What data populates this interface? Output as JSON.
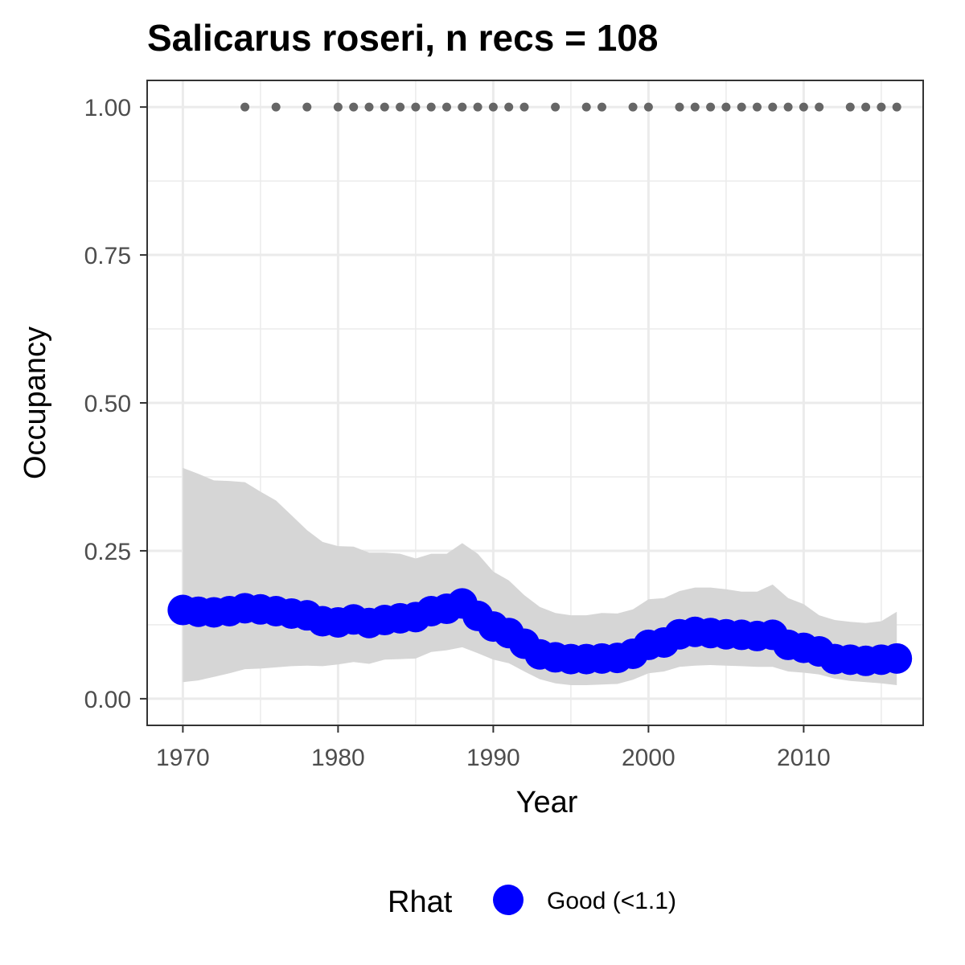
{
  "chart_data": {
    "type": "line",
    "title": "Salicarus roseri, n recs = 108",
    "xlabel": "Year",
    "ylabel": "Occupancy",
    "xlim": [
      1967.7,
      2017.7
    ],
    "ylim": [
      -0.045,
      1.045
    ],
    "x_ticks": [
      1970,
      1980,
      1990,
      2000,
      2010
    ],
    "x_tick_labels": [
      "1970",
      "1980",
      "1990",
      "2000",
      "2010"
    ],
    "y_ticks": [
      0,
      0.25,
      0.5,
      0.75,
      1.0
    ],
    "y_tick_labels": [
      "0.00",
      "0.25",
      "0.50",
      "0.75",
      "1.00"
    ],
    "grid": true,
    "legend": {
      "position": "bottom",
      "title": "Rhat",
      "entries": [
        {
          "label": "Good (<1.1)",
          "color": "#0000ff"
        }
      ]
    },
    "colors": {
      "series": "#0000ff",
      "ribbon": "#d6d6d6",
      "records": "#666666",
      "grid": "#ebebeb",
      "panel_border": "#333333"
    },
    "series": [
      {
        "name": "Good (<1.1)",
        "x": [
          1970,
          1971,
          1972,
          1973,
          1974,
          1975,
          1976,
          1977,
          1978,
          1979,
          1980,
          1981,
          1982,
          1983,
          1984,
          1985,
          1986,
          1987,
          1988,
          1989,
          1990,
          1991,
          1992,
          1993,
          1994,
          1995,
          1996,
          1997,
          1998,
          1999,
          2000,
          2001,
          2002,
          2003,
          2004,
          2005,
          2006,
          2007,
          2008,
          2009,
          2010,
          2011,
          2012,
          2013,
          2014,
          2015,
          2016
        ],
        "y": [
          0.15,
          0.147,
          0.146,
          0.148,
          0.153,
          0.151,
          0.148,
          0.144,
          0.141,
          0.131,
          0.129,
          0.134,
          0.128,
          0.133,
          0.136,
          0.138,
          0.148,
          0.152,
          0.161,
          0.14,
          0.122,
          0.111,
          0.093,
          0.075,
          0.07,
          0.067,
          0.067,
          0.068,
          0.069,
          0.076,
          0.091,
          0.095,
          0.109,
          0.113,
          0.111,
          0.109,
          0.108,
          0.106,
          0.108,
          0.091,
          0.086,
          0.08,
          0.067,
          0.066,
          0.064,
          0.066,
          0.068
        ]
      }
    ],
    "ribbon": {
      "x": [
        1970,
        1971,
        1972,
        1973,
        1974,
        1975,
        1976,
        1977,
        1978,
        1979,
        1980,
        1981,
        1982,
        1983,
        1984,
        1985,
        1986,
        1987,
        1988,
        1989,
        1990,
        1991,
        1992,
        1993,
        1994,
        1995,
        1996,
        1997,
        1998,
        1999,
        2000,
        2001,
        2002,
        2003,
        2004,
        2005,
        2006,
        2007,
        2008,
        2009,
        2010,
        2011,
        2012,
        2013,
        2014,
        2015,
        2016
      ],
      "upper": [
        0.39,
        0.38,
        0.369,
        0.368,
        0.366,
        0.35,
        0.335,
        0.31,
        0.285,
        0.265,
        0.258,
        0.257,
        0.247,
        0.247,
        0.245,
        0.237,
        0.245,
        0.245,
        0.263,
        0.245,
        0.215,
        0.2,
        0.175,
        0.155,
        0.145,
        0.141,
        0.141,
        0.145,
        0.144,
        0.151,
        0.168,
        0.17,
        0.182,
        0.188,
        0.188,
        0.185,
        0.181,
        0.181,
        0.193,
        0.17,
        0.16,
        0.141,
        0.133,
        0.13,
        0.128,
        0.131,
        0.147
      ],
      "lower": [
        0.028,
        0.031,
        0.037,
        0.043,
        0.05,
        0.051,
        0.053,
        0.055,
        0.056,
        0.055,
        0.058,
        0.062,
        0.059,
        0.066,
        0.067,
        0.068,
        0.079,
        0.082,
        0.087,
        0.077,
        0.066,
        0.06,
        0.046,
        0.033,
        0.026,
        0.023,
        0.023,
        0.024,
        0.025,
        0.032,
        0.043,
        0.046,
        0.054,
        0.056,
        0.057,
        0.056,
        0.055,
        0.054,
        0.054,
        0.046,
        0.044,
        0.041,
        0.034,
        0.03,
        0.028,
        0.026,
        0.023
      ]
    },
    "records": {
      "y": 1.0,
      "years": [
        1974,
        1976,
        1978,
        1980,
        1981,
        1982,
        1983,
        1984,
        1985,
        1986,
        1987,
        1988,
        1989,
        1990,
        1991,
        1992,
        1994,
        1996,
        1997,
        1999,
        2000,
        2002,
        2003,
        2004,
        2005,
        2006,
        2007,
        2008,
        2009,
        2010,
        2011,
        2013,
        2014,
        2015,
        2016
      ]
    }
  }
}
